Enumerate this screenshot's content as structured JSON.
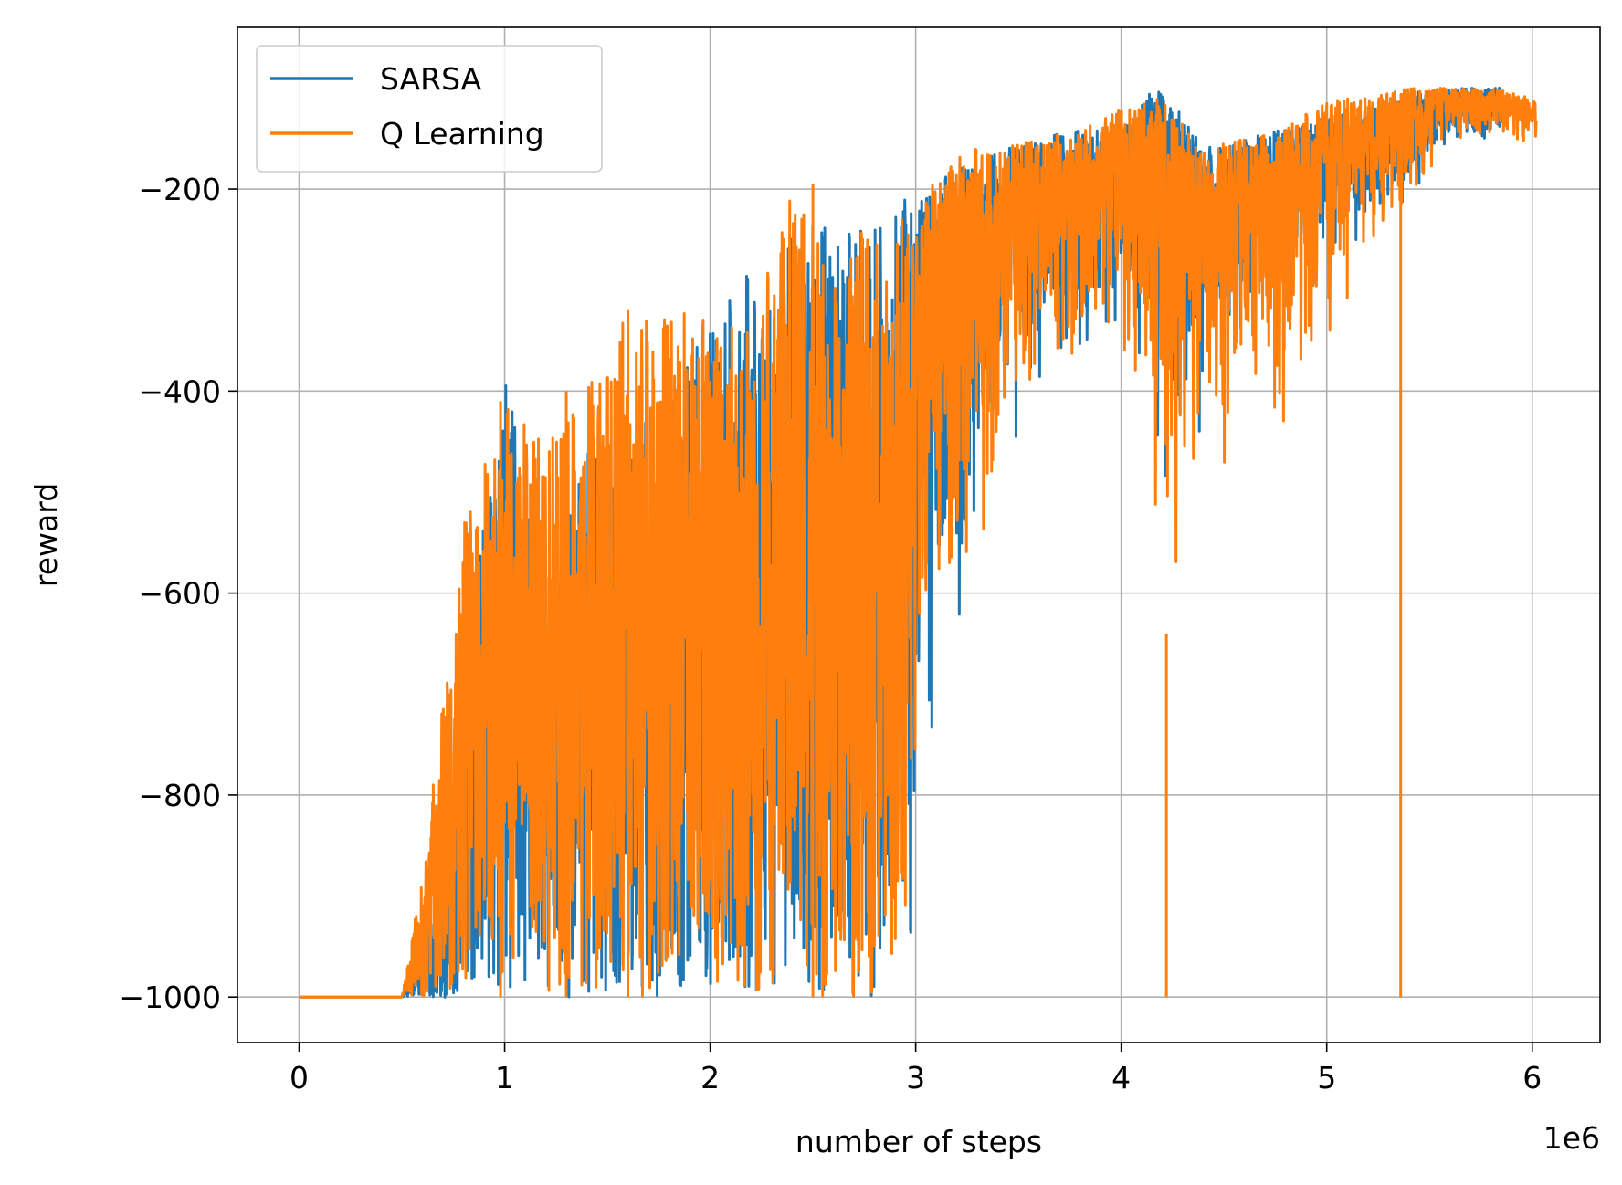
{
  "chart_data": {
    "type": "line",
    "title": "",
    "xlabel": "number of steps",
    "ylabel": "reward",
    "x_offset_label": "1e6",
    "xlim": [
      -0.3,
      6.33
    ],
    "ylim": [
      -1045,
      -40
    ],
    "x_ticks": [
      0,
      1,
      2,
      3,
      4,
      5,
      6
    ],
    "x_tick_labels": [
      "0",
      "1",
      "2",
      "3",
      "4",
      "5",
      "6"
    ],
    "y_ticks": [
      -1000,
      -800,
      -600,
      -400,
      -200
    ],
    "y_tick_labels": [
      "−1000",
      "−800",
      "−600",
      "−400",
      "−200"
    ],
    "grid": true,
    "legend_position": "top-left",
    "series": [
      {
        "name": "SARSA",
        "color": "#1f77b4",
        "envelope_x": [
          0.0,
          0.5,
          0.7,
          0.8,
          1.0,
          1.2,
          1.4,
          1.6,
          1.8,
          2.0,
          2.2,
          2.4,
          2.6,
          2.8,
          3.0,
          3.2,
          3.4,
          3.6,
          3.8,
          4.0,
          4.2,
          4.4,
          4.6,
          4.8,
          5.0,
          5.2,
          5.4,
          5.6,
          5.8
        ],
        "envelope_top": [
          -1000,
          -1000,
          -880,
          -680,
          -375,
          -590,
          -460,
          -440,
          -400,
          -330,
          -280,
          -230,
          -240,
          -240,
          -200,
          -180,
          -160,
          -150,
          -140,
          -140,
          -90,
          -160,
          -150,
          -140,
          -130,
          -120,
          -105,
          -100,
          -100
        ],
        "envelope_bottom": [
          -1000,
          -1000,
          -1000,
          -1000,
          -1000,
          -1000,
          -1000,
          -1000,
          -1000,
          -1000,
          -1000,
          -1000,
          -1000,
          -1000,
          -950,
          -660,
          -560,
          -460,
          -400,
          -360,
          -520,
          -480,
          -330,
          -300,
          -280,
          -260,
          -230,
          -165,
          -165
        ]
      },
      {
        "name": "Q Learning",
        "color": "#ff7f0e",
        "envelope_x": [
          0.0,
          0.5,
          0.6,
          0.8,
          1.0,
          1.2,
          1.4,
          1.6,
          1.8,
          2.0,
          2.2,
          2.4,
          2.6,
          2.8,
          3.0,
          3.2,
          3.4,
          3.6,
          3.8,
          4.0,
          4.2,
          4.4,
          4.6,
          4.8,
          5.0,
          5.2,
          5.4,
          5.6,
          5.8,
          6.0
        ],
        "envelope_top": [
          -1000,
          -1000,
          -880,
          -530,
          -410,
          -450,
          -400,
          -320,
          -320,
          -320,
          -330,
          -195,
          -250,
          -240,
          -220,
          -160,
          -160,
          -150,
          -140,
          -120,
          -110,
          -160,
          -150,
          -140,
          -110,
          -110,
          -100,
          -100,
          -100,
          -110
        ],
        "envelope_bottom": [
          -1000,
          -1000,
          -1000,
          -1000,
          -1000,
          -1000,
          -1000,
          -1000,
          -1000,
          -1000,
          -1000,
          -1000,
          -1000,
          -1000,
          -900,
          -720,
          -560,
          -420,
          -430,
          -400,
          -640,
          -580,
          -440,
          -500,
          -380,
          -300,
          -250,
          -160,
          -160,
          -160
        ],
        "spike_points": [
          {
            "x": 0.98,
            "y": -410
          },
          {
            "x": 1.3,
            "y": -400
          },
          {
            "x": 1.6,
            "y": -320
          },
          {
            "x": 2.5,
            "y": -195
          },
          {
            "x": 4.22,
            "y": -640
          },
          {
            "x": 5.36,
            "y": -1000
          }
        ]
      }
    ]
  }
}
